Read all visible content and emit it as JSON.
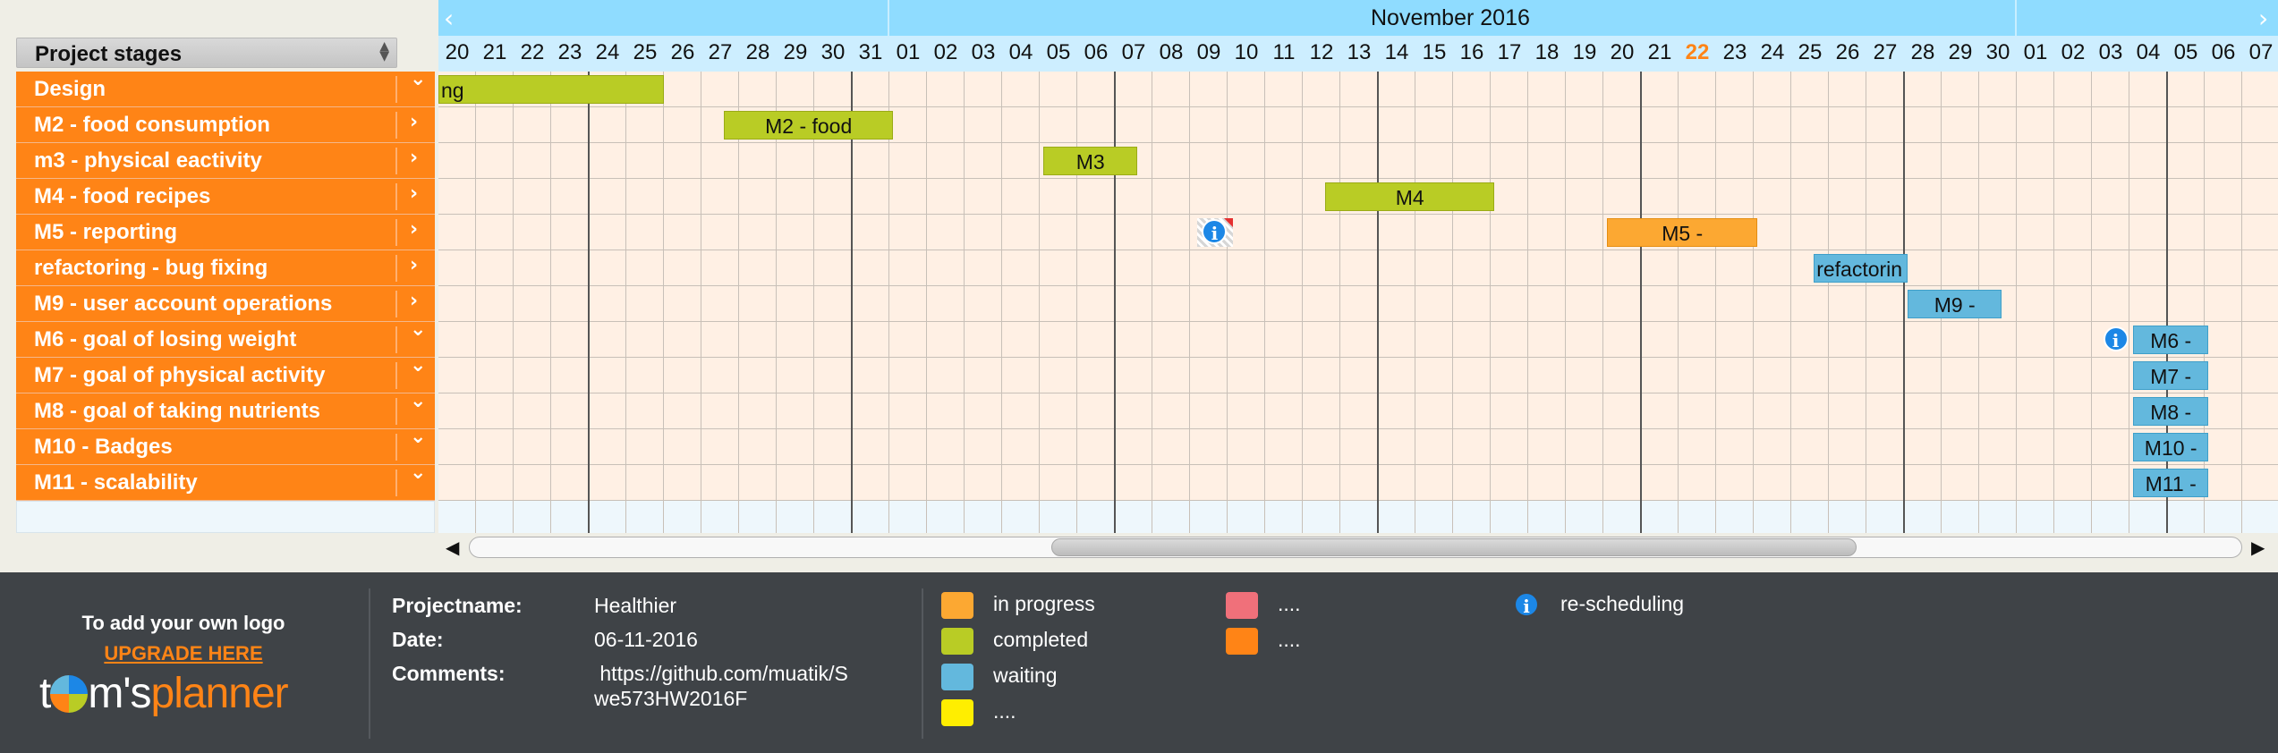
{
  "panel": {
    "title": "Project stages"
  },
  "stages": [
    {
      "label": "Design",
      "expanded": true
    },
    {
      "label": "M2 - food consumption",
      "expanded": false
    },
    {
      "label": "m3 - physical eactivity",
      "expanded": false
    },
    {
      "label": "M4 - food recipes",
      "expanded": false
    },
    {
      "label": "M5 - reporting",
      "expanded": false
    },
    {
      "label": "refactoring - bug fixing",
      "expanded": false
    },
    {
      "label": "M9 - user account operations",
      "expanded": false
    },
    {
      "label": "M6 - goal of losing weight",
      "expanded": true
    },
    {
      "label": "M7 - goal of physical activity",
      "expanded": true
    },
    {
      "label": "M8 - goal of taking nutrients",
      "expanded": true
    },
    {
      "label": "M10 - Badges",
      "expanded": true
    },
    {
      "label": "M11 - scalability",
      "expanded": true
    }
  ],
  "timeline": {
    "month": "November 2016",
    "days": [
      "20",
      "21",
      "22",
      "23",
      "24",
      "25",
      "26",
      "27",
      "28",
      "29",
      "30",
      "31",
      "01",
      "02",
      "03",
      "04",
      "05",
      "06",
      "07",
      "08",
      "09",
      "10",
      "11",
      "12",
      "13",
      "14",
      "15",
      "16",
      "17",
      "18",
      "19",
      "20",
      "21",
      "22",
      "23",
      "24",
      "25",
      "26",
      "27",
      "28",
      "29",
      "30",
      "01",
      "02",
      "03",
      "04",
      "05",
      "06",
      "07"
    ],
    "today_index": 33
  },
  "bars": [
    {
      "row": 0,
      "label": "ng",
      "status": "completed"
    },
    {
      "row": 1,
      "label": "M2 - food",
      "status": "completed"
    },
    {
      "row": 2,
      "label": "M3",
      "status": "completed"
    },
    {
      "row": 3,
      "label": "M4",
      "status": "completed"
    },
    {
      "row": 4,
      "label": "M5 -",
      "status": "in progress"
    },
    {
      "row": 5,
      "label": "refactorin",
      "status": "waiting"
    },
    {
      "row": 6,
      "label": "M9 -",
      "status": "waiting"
    },
    {
      "row": 7,
      "label": "M6 -",
      "status": "waiting"
    },
    {
      "row": 8,
      "label": "M7 -",
      "status": "waiting"
    },
    {
      "row": 9,
      "label": "M8 -",
      "status": "waiting"
    },
    {
      "row": 10,
      "label": "M10 -",
      "status": "waiting"
    },
    {
      "row": 11,
      "label": "M11 -",
      "status": "waiting"
    }
  ],
  "footer": {
    "logo_cta": "To add your own logo",
    "upgrade": "UPGRADE HERE",
    "brand_prefix": "t",
    "brand_mid": "m's",
    "brand_suffix": "planner",
    "project_label": "Projectname:",
    "project_value": "Healthier",
    "date_label": "Date:",
    "date_value": "06-11-2016",
    "comments_label": "Comments:",
    "comments_line1": " https://github.com/muatik/S",
    "comments_line2": "we573HW2016F"
  },
  "legend": [
    {
      "label": "in progress",
      "color": "#fca832"
    },
    {
      "label": "completed",
      "color": "#b9cc25"
    },
    {
      "label": "waiting",
      "color": "#63b8dd"
    },
    {
      "label": "....",
      "color": "#ffee00"
    },
    {
      "label": "....",
      "color": "#f0707a"
    },
    {
      "label": "....",
      "color": "#ff8416"
    },
    {
      "label": "re-scheduling",
      "color": "#1c87e6"
    }
  ],
  "icons": [
    "sort-icon",
    "chevron-down-icon",
    "chevron-right-icon",
    "info-icon",
    "arrow-left-icon",
    "arrow-right-icon"
  ]
}
